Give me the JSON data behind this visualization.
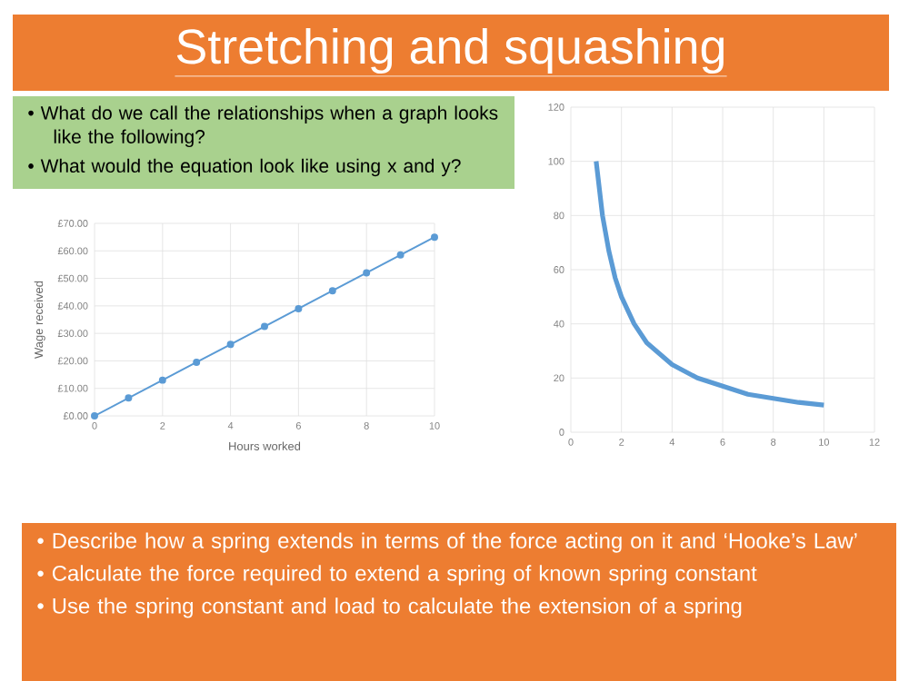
{
  "chart_data": [
    {
      "type": "other",
      "title": "Stretching and squashing",
      "color": "#ed7d31"
    },
    {
      "type": "other",
      "color": "#a9d18e",
      "annotations": [
        "•  What do we call the relationships when a graph looks like the following?",
        "•  What would the equation look like using x and y?"
      ]
    },
    {
      "type": "line",
      "x": [
        0,
        1,
        2,
        3,
        4,
        5,
        6,
        7,
        8,
        9,
        10
      ],
      "values": [
        0,
        6.5,
        13,
        19.5,
        26,
        32.5,
        39,
        45.5,
        52,
        58.5,
        65
      ],
      "color": "#5b9bd5",
      "marker": "circle",
      "grid": true,
      "xlabel": "Hours worked",
      "ylabel": "Wage received",
      "xlim": [
        0,
        10
      ],
      "ylim": [
        0,
        70
      ],
      "xticks": [
        0,
        2,
        4,
        6,
        8,
        10
      ],
      "yticks": [
        {
          "value": 0,
          "label": "£0.00"
        },
        {
          "value": 10,
          "label": "£10.00"
        },
        {
          "value": 20,
          "label": "£20.00"
        },
        {
          "value": 30,
          "label": "£30.00"
        },
        {
          "value": 40,
          "label": "£40.00"
        },
        {
          "value": 50,
          "label": "£50.00"
        },
        {
          "value": 60,
          "label": "£60.00"
        },
        {
          "value": 70,
          "label": "£70.00"
        }
      ]
    },
    {
      "type": "line",
      "x": [
        1,
        1.25,
        1.5,
        1.75,
        2,
        2.5,
        3,
        3.5,
        4,
        5,
        6,
        7,
        8,
        9,
        10
      ],
      "values": [
        100,
        80,
        67,
        57,
        50,
        40,
        33,
        29,
        25,
        20,
        17,
        14,
        12.5,
        11,
        10
      ],
      "color": "#5b9bd5",
      "grid": true,
      "xlim": [
        0,
        12
      ],
      "ylim": [
        0,
        120
      ],
      "xticks": [
        0,
        2,
        4,
        6,
        8,
        10,
        12
      ],
      "yticks": [
        0,
        20,
        40,
        60,
        80,
        100,
        120
      ]
    },
    {
      "type": "other",
      "color": "#ed7d31",
      "annotations": [
        "•  Describe how a spring extends in terms of the force acting on it and ‘Hooke’s Law’",
        "•  Calculate the force required to extend a spring of known spring constant",
        "•  Use the spring constant and load to calculate the extension of a spring"
      ]
    }
  ]
}
